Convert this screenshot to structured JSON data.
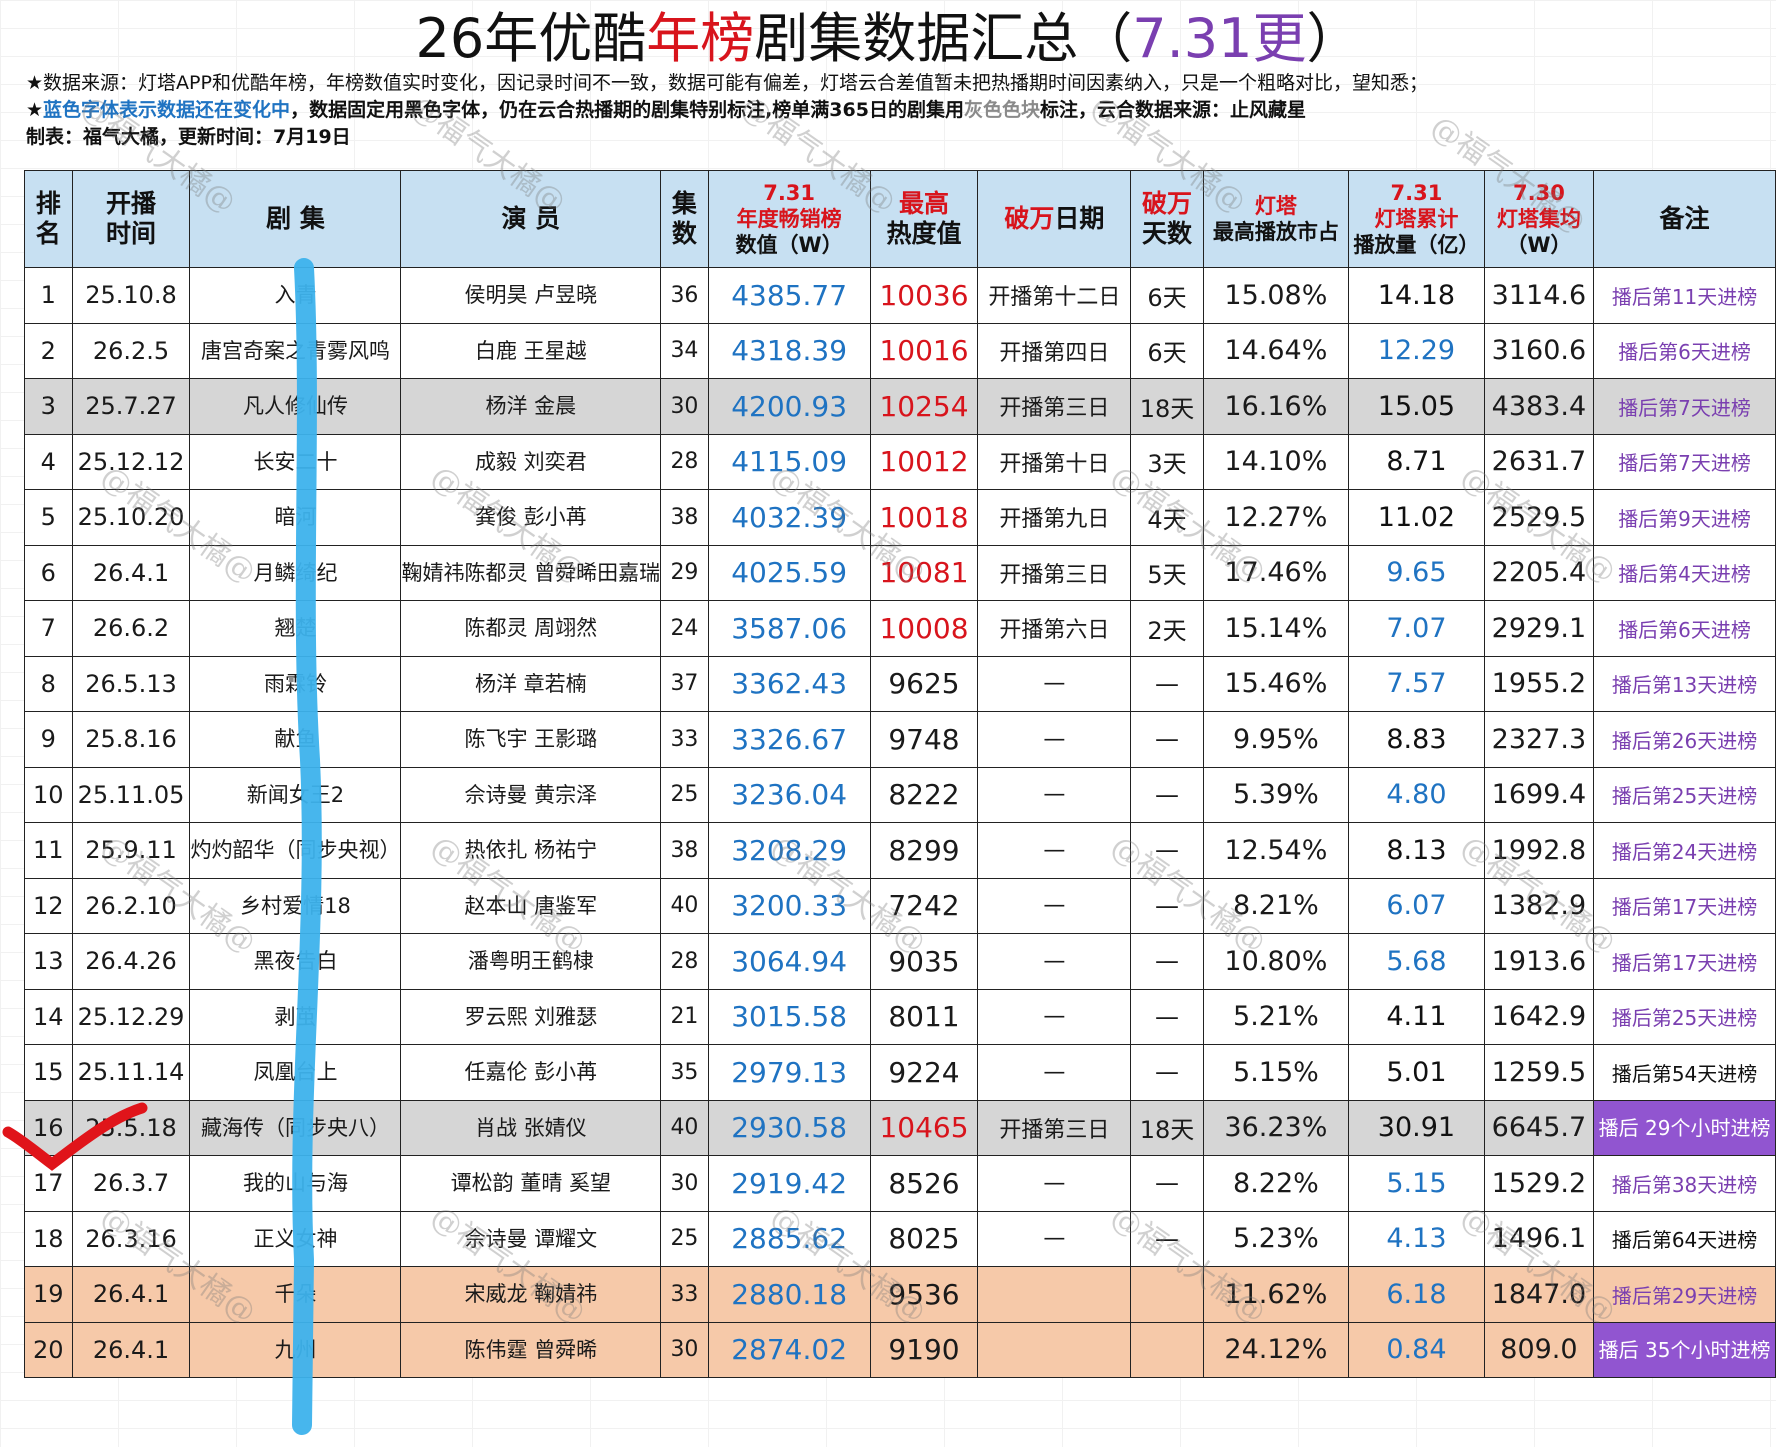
{
  "title": {
    "prefix": "26年优酷",
    "highlight": "年榜",
    "middle": "剧集数据汇总（",
    "update": "7.31更",
    "suffix": "）"
  },
  "notes": {
    "line1": "★数据来源：灯塔APP和优酷年榜，年榜数值实时变化，因记录时间不一致，数据可能有偏差，灯塔云合差值暂未把热播期时间因素纳入，只是一个粗略对比，望知悉；",
    "line2_star": "★",
    "line2_blue": "蓝色字体表示数据还在变化中",
    "line2_mid": "，数据固定用黑色字体，仍在云合热播期的剧集特别标注,榜单满365日的剧集用",
    "line2_gray": "灰色色块",
    "line2_end": "标注，云合数据来源：止风藏星",
    "line3": "制表：福气大橘，更新时间：7月19日"
  },
  "watermark": "@福气大橘@",
  "headers": {
    "rank_a": "排",
    "rank_b": "名",
    "start_a": "开播",
    "start_b": "时间",
    "drama": "剧 集",
    "actors": "演 员",
    "eps_a": "集",
    "eps_b": "数",
    "sales_date": "7.31",
    "sales_a": "年度畅销榜",
    "sales_b": "数值（W）",
    "heat_a": "最高",
    "heat_b": "热度值",
    "date_red": "破万",
    "date_black": "日期",
    "days_red": "破万",
    "days_black": "天数",
    "share_red": "灯塔",
    "share_black": "最高播放市占",
    "cum_date": "7.31",
    "cum_a": "灯塔累计",
    "cum_b": "播放量（亿）",
    "avg_date": "7.30",
    "avg_a": "灯塔集均",
    "avg_b": "（W）",
    "remark": "备注"
  },
  "rows": [
    {
      "rank": "1",
      "start": "25.10.8",
      "drama": "入青",
      "actors": "侯明昊  卢昱晓",
      "eps": "36",
      "sales": "4385.77",
      "heat": "10036",
      "date": "开播第十二日",
      "days": "6天",
      "share": "15.08%",
      "cum": "14.18",
      "avg": "3114.6",
      "remark": "播后第11天进榜"
    },
    {
      "rank": "2",
      "start": "26.2.5",
      "drama": "唐宫奇案之青雾风鸣",
      "actors": "白鹿 王星越",
      "eps": "34",
      "sales": "4318.39",
      "heat": "10016",
      "date": "开播第四日",
      "days": "6天",
      "share": "14.64%",
      "cum": "12.29",
      "avg": "3160.6",
      "remark": "播后第6天进榜"
    },
    {
      "rank": "3",
      "start": "25.7.27",
      "drama": "凡人修仙传",
      "actors": "杨洋  金晨",
      "eps": "30",
      "sales": "4200.93",
      "heat": "10254",
      "date": "开播第三日",
      "days": "18天",
      "share": "16.16%",
      "cum": "15.05",
      "avg": "4383.4",
      "remark": "播后第7天进榜"
    },
    {
      "rank": "4",
      "start": "25.12.12",
      "drama": "长安二十",
      "actors": "成毅  刘奕君",
      "eps": "28",
      "sales": "4115.09",
      "heat": "10012",
      "date": "开播第十日",
      "days": "3天",
      "share": "14.10%",
      "cum": "8.71",
      "avg": "2631.7",
      "remark": "播后第7天进榜"
    },
    {
      "rank": "5",
      "start": "25.10.20",
      "drama": "暗河",
      "actors": "龚俊  彭小苒",
      "eps": "38",
      "sales": "4032.39",
      "heat": "10018",
      "date": "开播第九日",
      "days": "4天",
      "share": "12.27%",
      "cum": "11.02",
      "avg": "2529.5",
      "remark": "播后第9天进榜"
    },
    {
      "rank": "6",
      "start": "26.4.1",
      "drama": "月鳞绮纪",
      "actors": "鞠婧祎陈都灵 曾舜晞田嘉瑞",
      "eps": "29",
      "sales": "4025.59",
      "heat": "10081",
      "date": "开播第三日",
      "days": "5天",
      "share": "17.46%",
      "cum": "9.65",
      "avg": "2205.4",
      "remark": "播后第4天进榜"
    },
    {
      "rank": "7",
      "start": "26.6.2",
      "drama": "翘楚",
      "actors": "陈都灵 周翊然",
      "eps": "24",
      "sales": "3587.06",
      "heat": "10008",
      "date": "开播第六日",
      "days": "2天",
      "share": "15.14%",
      "cum": "7.07",
      "avg": "2929.1",
      "remark": "播后第6天进榜"
    },
    {
      "rank": "8",
      "start": "26.5.13",
      "drama": "雨霖铃",
      "actors": "杨洋  章若楠",
      "eps": "37",
      "sales": "3362.43",
      "heat": "9625",
      "date": "—",
      "days": "—",
      "share": "15.46%",
      "cum": "7.57",
      "avg": "1955.2",
      "remark": "播后第13天进榜"
    },
    {
      "rank": "9",
      "start": "25.8.16",
      "drama": "献鱼",
      "actors": "陈飞宇  王影璐",
      "eps": "33",
      "sales": "3326.67",
      "heat": "9748",
      "date": "—",
      "days": "—",
      "share": "9.95%",
      "cum": "8.83",
      "avg": "2327.3",
      "remark": "播后第26天进榜"
    },
    {
      "rank": "10",
      "start": "25.11.05",
      "drama": "新闻女王2",
      "actors": "佘诗曼  黄宗泽",
      "eps": "25",
      "sales": "3236.04",
      "heat": "8222",
      "date": "—",
      "days": "—",
      "share": "5.39%",
      "cum": "4.80",
      "avg": "1699.4",
      "remark": "播后第25天进榜"
    },
    {
      "rank": "11",
      "start": "25.9.11",
      "drama": "灼灼韶华（同步央视）",
      "actors": "热依扎  杨祐宁",
      "eps": "38",
      "sales": "3208.29",
      "heat": "8299",
      "date": "—",
      "days": "—",
      "share": "12.54%",
      "cum": "8.13",
      "avg": "1992.8",
      "remark": "播后第24天进榜"
    },
    {
      "rank": "12",
      "start": "26.2.10",
      "drama": "乡村爱情18",
      "actors": "赵本山  唐鉴军",
      "eps": "40",
      "sales": "3200.33",
      "heat": "7242",
      "date": "—",
      "days": "—",
      "share": "8.21%",
      "cum": "6.07",
      "avg": "1382.9",
      "remark": "播后第17天进榜"
    },
    {
      "rank": "13",
      "start": "26.4.26",
      "drama": "黑夜告白",
      "actors": "潘粤明王鹤棣",
      "eps": "28",
      "sales": "3064.94",
      "heat": "9035",
      "date": "—",
      "days": "—",
      "share": "10.80%",
      "cum": "5.68",
      "avg": "1913.6",
      "remark": "播后第17天进榜"
    },
    {
      "rank": "14",
      "start": "25.12.29",
      "drama": "剥茧",
      "actors": "罗云熙  刘雅瑟",
      "eps": "21",
      "sales": "3015.58",
      "heat": "8011",
      "date": "—",
      "days": "—",
      "share": "5.21%",
      "cum": "4.11",
      "avg": "1642.9",
      "remark": "播后第25天进榜"
    },
    {
      "rank": "15",
      "start": "25.11.14",
      "drama": "凤凰台上",
      "actors": "任嘉伦  彭小苒",
      "eps": "35",
      "sales": "2979.13",
      "heat": "9224",
      "date": "—",
      "days": "—",
      "share": "5.15%",
      "cum": "5.01",
      "avg": "1259.5",
      "remark": "播后第54天进榜"
    },
    {
      "rank": "16",
      "start": "25.5.18",
      "drama": "藏海传（同步央八）",
      "actors": "肖战  张婧仪",
      "eps": "40",
      "sales": "2930.58",
      "heat": "10465",
      "date": "开播第三日",
      "days": "18天",
      "share": "36.23%",
      "cum": "30.91",
      "avg": "6645.7",
      "remark": "播后 29个小时进榜"
    },
    {
      "rank": "17",
      "start": "26.3.7",
      "drama": "我的山与海",
      "actors": "谭松韵  董晴  奚望",
      "eps": "30",
      "sales": "2919.42",
      "heat": "8526",
      "date": "—",
      "days": "—",
      "share": "8.22%",
      "cum": "5.15",
      "avg": "1529.2",
      "remark": "播后第38天进榜"
    },
    {
      "rank": "18",
      "start": "26.3.16",
      "drama": "正义女神",
      "actors": "佘诗曼  谭耀文",
      "eps": "25",
      "sales": "2885.62",
      "heat": "8025",
      "date": "—",
      "days": "—",
      "share": "5.23%",
      "cum": "4.13",
      "avg": "1496.1",
      "remark": "播后第64天进榜"
    },
    {
      "rank": "19",
      "start": "26.4.1",
      "drama": "千朵",
      "actors": "宋威龙  鞠婧祎",
      "eps": "33",
      "sales": "2880.18",
      "heat": "9536",
      "date": "",
      "days": "",
      "share": "11.62%",
      "cum": "6.18",
      "avg": "1847.0",
      "remark": "播后第29天进榜"
    },
    {
      "rank": "20",
      "start": "26.4.1",
      "drama": "九州",
      "actors": "陈伟霆  曾舜晞",
      "eps": "30",
      "sales": "2874.02",
      "heat": "9190",
      "date": "",
      "days": "",
      "share": "24.12%",
      "cum": "0.84",
      "avg": "809.0",
      "remark": "播后 35个小时进榜"
    }
  ],
  "style": {
    "gray_rows": [
      3,
      16
    ],
    "peach_rows": [
      19,
      20
    ],
    "red_heat_rows": [
      1,
      2,
      3,
      4,
      5,
      6,
      7,
      16
    ],
    "blue_cum_rows": [
      2,
      6,
      7,
      8,
      10,
      12,
      13,
      17,
      18,
      19,
      20
    ],
    "pill_remark_rows": [
      16,
      20
    ],
    "black_remark_rows": [
      15,
      18
    ],
    "header_bg": "#c7e0f2",
    "gray_row_bg": "#d6d6d6",
    "peach_row_bg": "#f6c9a9",
    "blue_text": "#1f73c2",
    "red_text": "#d8141c",
    "purple_text": "#7a3fb0"
  }
}
